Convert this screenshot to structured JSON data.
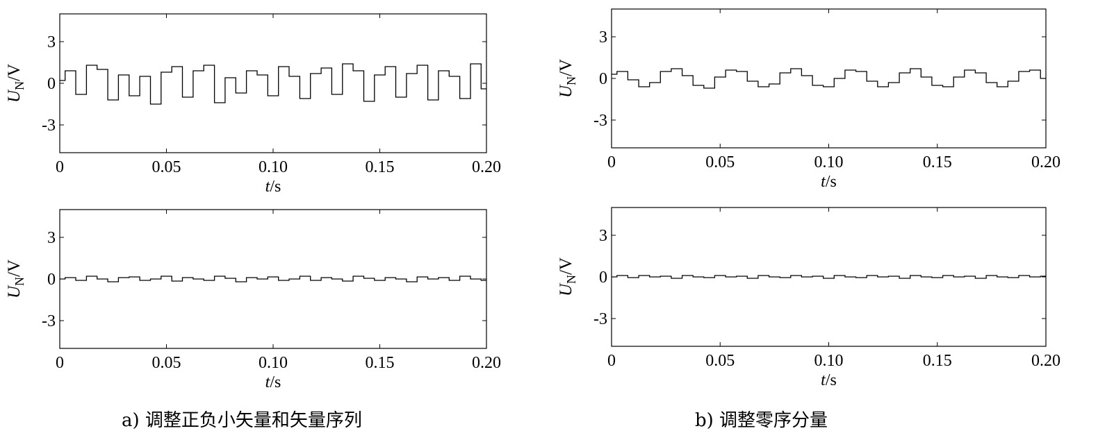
{
  "figure": {
    "captions": {
      "a": "a) 调整正负小矢量和矢量序列",
      "b": "b) 调整零序分量"
    }
  },
  "chart_data": [
    {
      "id": "a-top",
      "type": "line",
      "title": "",
      "xlabel": "t/s",
      "ylabel": "UN/V",
      "xlim": [
        0,
        0.2
      ],
      "ylim": [
        -5,
        5
      ],
      "xticks": [
        "0",
        "0.05",
        "0.10",
        "0.15",
        "0.20"
      ],
      "yticks": [
        "3",
        "0",
        "-3"
      ],
      "grid": false,
      "series": [
        {
          "x": [
            0,
            0.005,
            0.01,
            0.015,
            0.02,
            0.025,
            0.03,
            0.035,
            0.04,
            0.045,
            0.05,
            0.055,
            0.06,
            0.065,
            0.07,
            0.075,
            0.08,
            0.085,
            0.09,
            0.095,
            0.1,
            0.105,
            0.11,
            0.115,
            0.12,
            0.125,
            0.13,
            0.135,
            0.14,
            0.145,
            0.15,
            0.155,
            0.16,
            0.165,
            0.17,
            0.175,
            0.18,
            0.185,
            0.19,
            0.195,
            0.2
          ],
          "y": [
            0.2,
            0.9,
            -0.8,
            1.3,
            1.0,
            -1.2,
            0.6,
            -0.9,
            0.5,
            -1.5,
            0.8,
            1.2,
            -1.0,
            0.9,
            1.3,
            -1.4,
            0.4,
            -0.7,
            0.9,
            0.6,
            -0.9,
            1.2,
            0.5,
            -1.1,
            0.7,
            1.1,
            -0.8,
            1.4,
            0.9,
            -1.3,
            0.6,
            1.2,
            -1.0,
            0.7,
            1.3,
            -1.2,
            0.9,
            0.5,
            -1.1,
            1.4,
            -0.4
          ]
        }
      ]
    },
    {
      "id": "b-top",
      "type": "line",
      "title": "",
      "xlabel": "t/s",
      "ylabel": "UN/V",
      "xlim": [
        0,
        0.2
      ],
      "ylim": [
        -5,
        5
      ],
      "xticks": [
        "0",
        "0.05",
        "0.10",
        "0.15",
        "0.20"
      ],
      "yticks": [
        "3",
        "0",
        "-3"
      ],
      "grid": false,
      "series": [
        {
          "x": [
            0,
            0.005,
            0.01,
            0.015,
            0.02,
            0.025,
            0.03,
            0.035,
            0.04,
            0.045,
            0.05,
            0.055,
            0.06,
            0.065,
            0.07,
            0.075,
            0.08,
            0.085,
            0.09,
            0.095,
            0.1,
            0.105,
            0.11,
            0.115,
            0.12,
            0.125,
            0.13,
            0.135,
            0.14,
            0.145,
            0.15,
            0.155,
            0.16,
            0.165,
            0.17,
            0.175,
            0.18,
            0.185,
            0.19,
            0.195,
            0.2
          ],
          "y": [
            0.3,
            0.5,
            -0.1,
            -0.6,
            -0.3,
            0.5,
            0.7,
            0.2,
            -0.5,
            -0.7,
            0.1,
            0.6,
            0.5,
            -0.2,
            -0.6,
            -0.4,
            0.4,
            0.7,
            0.2,
            -0.5,
            -0.6,
            0.0,
            0.6,
            0.5,
            -0.2,
            -0.6,
            -0.3,
            0.4,
            0.7,
            0.1,
            -0.5,
            -0.6,
            0.1,
            0.6,
            0.4,
            -0.3,
            -0.6,
            -0.2,
            0.5,
            0.6,
            0.0
          ]
        }
      ]
    },
    {
      "id": "a-bottom",
      "type": "line",
      "title": "",
      "xlabel": "t/s",
      "ylabel": "UN/V",
      "xlim": [
        0,
        0.2
      ],
      "ylim": [
        -5,
        5
      ],
      "xticks": [
        "0",
        "0.05",
        "0.10",
        "0.15",
        "0.20"
      ],
      "yticks": [
        "3",
        "0",
        "-3"
      ],
      "grid": false,
      "series": [
        {
          "x": [
            0,
            0.005,
            0.01,
            0.015,
            0.02,
            0.025,
            0.03,
            0.035,
            0.04,
            0.045,
            0.05,
            0.055,
            0.06,
            0.065,
            0.07,
            0.075,
            0.08,
            0.085,
            0.09,
            0.095,
            0.1,
            0.105,
            0.11,
            0.115,
            0.12,
            0.125,
            0.13,
            0.135,
            0.14,
            0.145,
            0.15,
            0.155,
            0.16,
            0.165,
            0.17,
            0.175,
            0.18,
            0.185,
            0.19,
            0.195,
            0.2
          ],
          "y": [
            0.0,
            0.1,
            -0.1,
            0.2,
            0.0,
            -0.2,
            0.1,
            0.15,
            -0.1,
            0.0,
            0.2,
            -0.15,
            0.1,
            0.0,
            -0.1,
            0.2,
            0.05,
            -0.2,
            0.1,
            0.0,
            0.15,
            -0.1,
            0.0,
            0.2,
            -0.1,
            0.1,
            0.0,
            -0.15,
            0.2,
            0.05,
            -0.1,
            0.1,
            0.0,
            -0.2,
            0.15,
            0.0,
            0.1,
            -0.1,
            0.2,
            0.0,
            -0.1
          ]
        }
      ]
    },
    {
      "id": "b-bottom",
      "type": "line",
      "title": "",
      "xlabel": "t/s",
      "ylabel": "UN/V",
      "xlim": [
        0,
        0.2
      ],
      "ylim": [
        -5,
        5
      ],
      "xticks": [
        "0",
        "0.05",
        "0.10",
        "0.15",
        "0.20"
      ],
      "yticks": [
        "3",
        "0",
        "-3"
      ],
      "grid": false,
      "series": [
        {
          "x": [
            0,
            0.005,
            0.01,
            0.015,
            0.02,
            0.025,
            0.03,
            0.035,
            0.04,
            0.045,
            0.05,
            0.055,
            0.06,
            0.065,
            0.07,
            0.075,
            0.08,
            0.085,
            0.09,
            0.095,
            0.1,
            0.105,
            0.11,
            0.115,
            0.12,
            0.125,
            0.13,
            0.135,
            0.14,
            0.145,
            0.15,
            0.155,
            0.16,
            0.165,
            0.17,
            0.175,
            0.18,
            0.185,
            0.19,
            0.195,
            0.2
          ],
          "y": [
            0.0,
            0.1,
            -0.05,
            0.1,
            0.0,
            0.05,
            -0.1,
            0.1,
            0.0,
            -0.05,
            0.1,
            0.0,
            0.05,
            -0.1,
            0.1,
            0.0,
            -0.05,
            0.1,
            0.0,
            0.05,
            -0.1,
            0.1,
            0.0,
            -0.05,
            0.1,
            0.0,
            0.05,
            -0.1,
            0.1,
            0.0,
            -0.05,
            0.1,
            0.0,
            0.05,
            -0.1,
            0.1,
            0.0,
            -0.05,
            0.1,
            0.0,
            0.05
          ]
        }
      ]
    }
  ]
}
